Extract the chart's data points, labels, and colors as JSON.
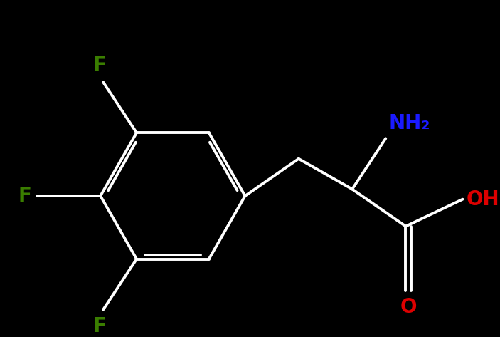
{
  "background_color": "#000000",
  "bond_color": "#ffffff",
  "bond_width": 2.8,
  "F_color": "#3a7d00",
  "NH2_color": "#1a1aff",
  "OH_color": "#dd0000",
  "O_color": "#dd0000",
  "figsize": [
    7.03,
    4.73
  ],
  "dpi": 100,
  "font_size": 20,
  "labels": {
    "F_top": {
      "text": "F",
      "color": "#3a7d00"
    },
    "F_left": {
      "text": "F",
      "color": "#3a7d00"
    },
    "F_bottom": {
      "text": "F",
      "color": "#3a7d00"
    },
    "NH2": {
      "text": "NH₂",
      "color": "#1a1aff"
    },
    "OH": {
      "text": "OH",
      "color": "#dd0000"
    },
    "O": {
      "text": "O",
      "color": "#dd0000"
    }
  }
}
